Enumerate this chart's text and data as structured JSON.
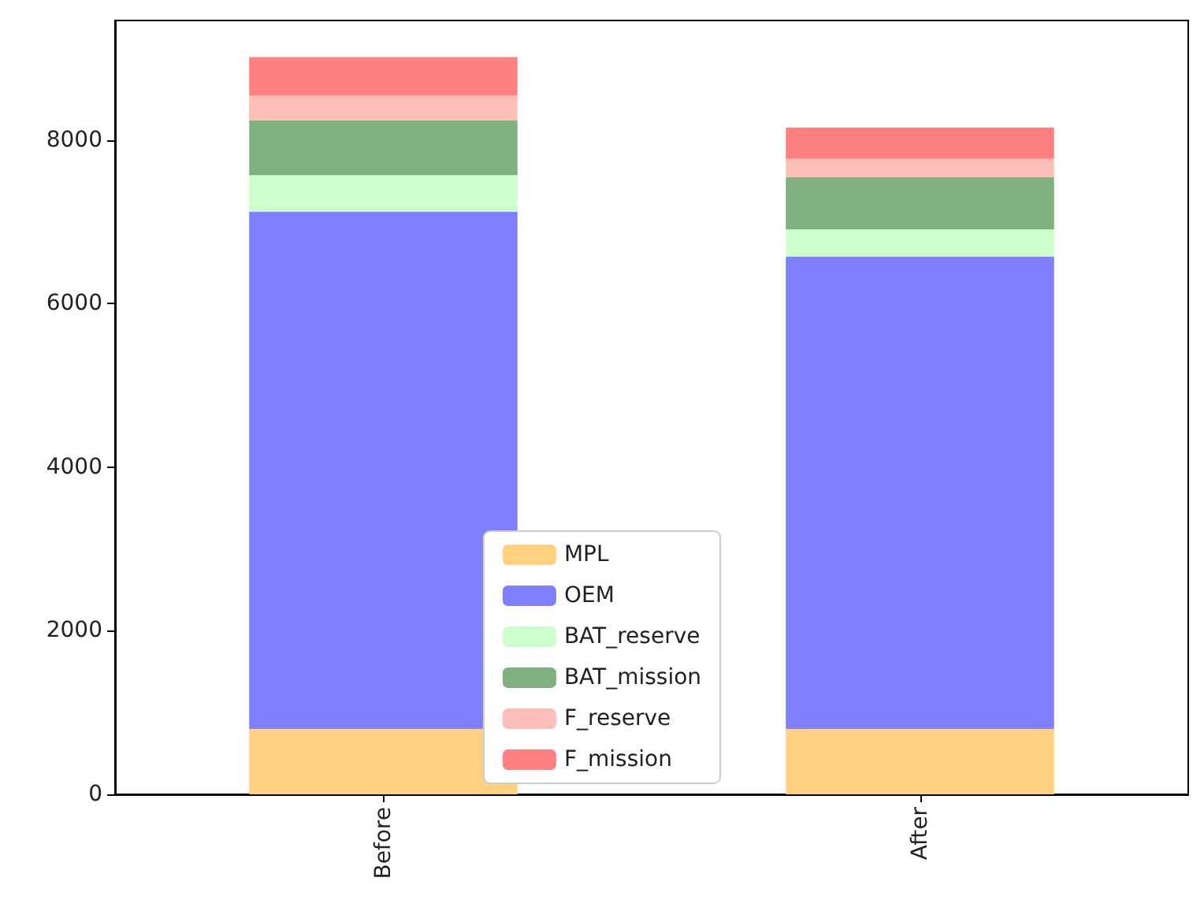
{
  "chart_data": {
    "type": "bar",
    "stacked": true,
    "categories": [
      "Before",
      "After"
    ],
    "series": [
      {
        "name": "MPL",
        "color": "#ffd080",
        "values": [
          800,
          800
        ]
      },
      {
        "name": "OEM",
        "color": "#8080ff",
        "values": [
          6325,
          5776
        ]
      },
      {
        "name": "BAT_reserve",
        "color": "#ccffcc",
        "values": [
          444,
          331
        ]
      },
      {
        "name": "BAT_mission",
        "color": "#80b080",
        "values": [
          669,
          637
        ]
      },
      {
        "name": "F_reserve",
        "color": "#fcbfb8",
        "values": [
          305,
          225
        ]
      },
      {
        "name": "F_mission",
        "color": "#ff8080",
        "values": [
          468,
          380
        ]
      }
    ],
    "ylim": [
      0,
      9460
    ],
    "yticks": [
      0,
      2000,
      4000,
      6000,
      8000
    ],
    "grid": false,
    "legend": "bottom"
  }
}
